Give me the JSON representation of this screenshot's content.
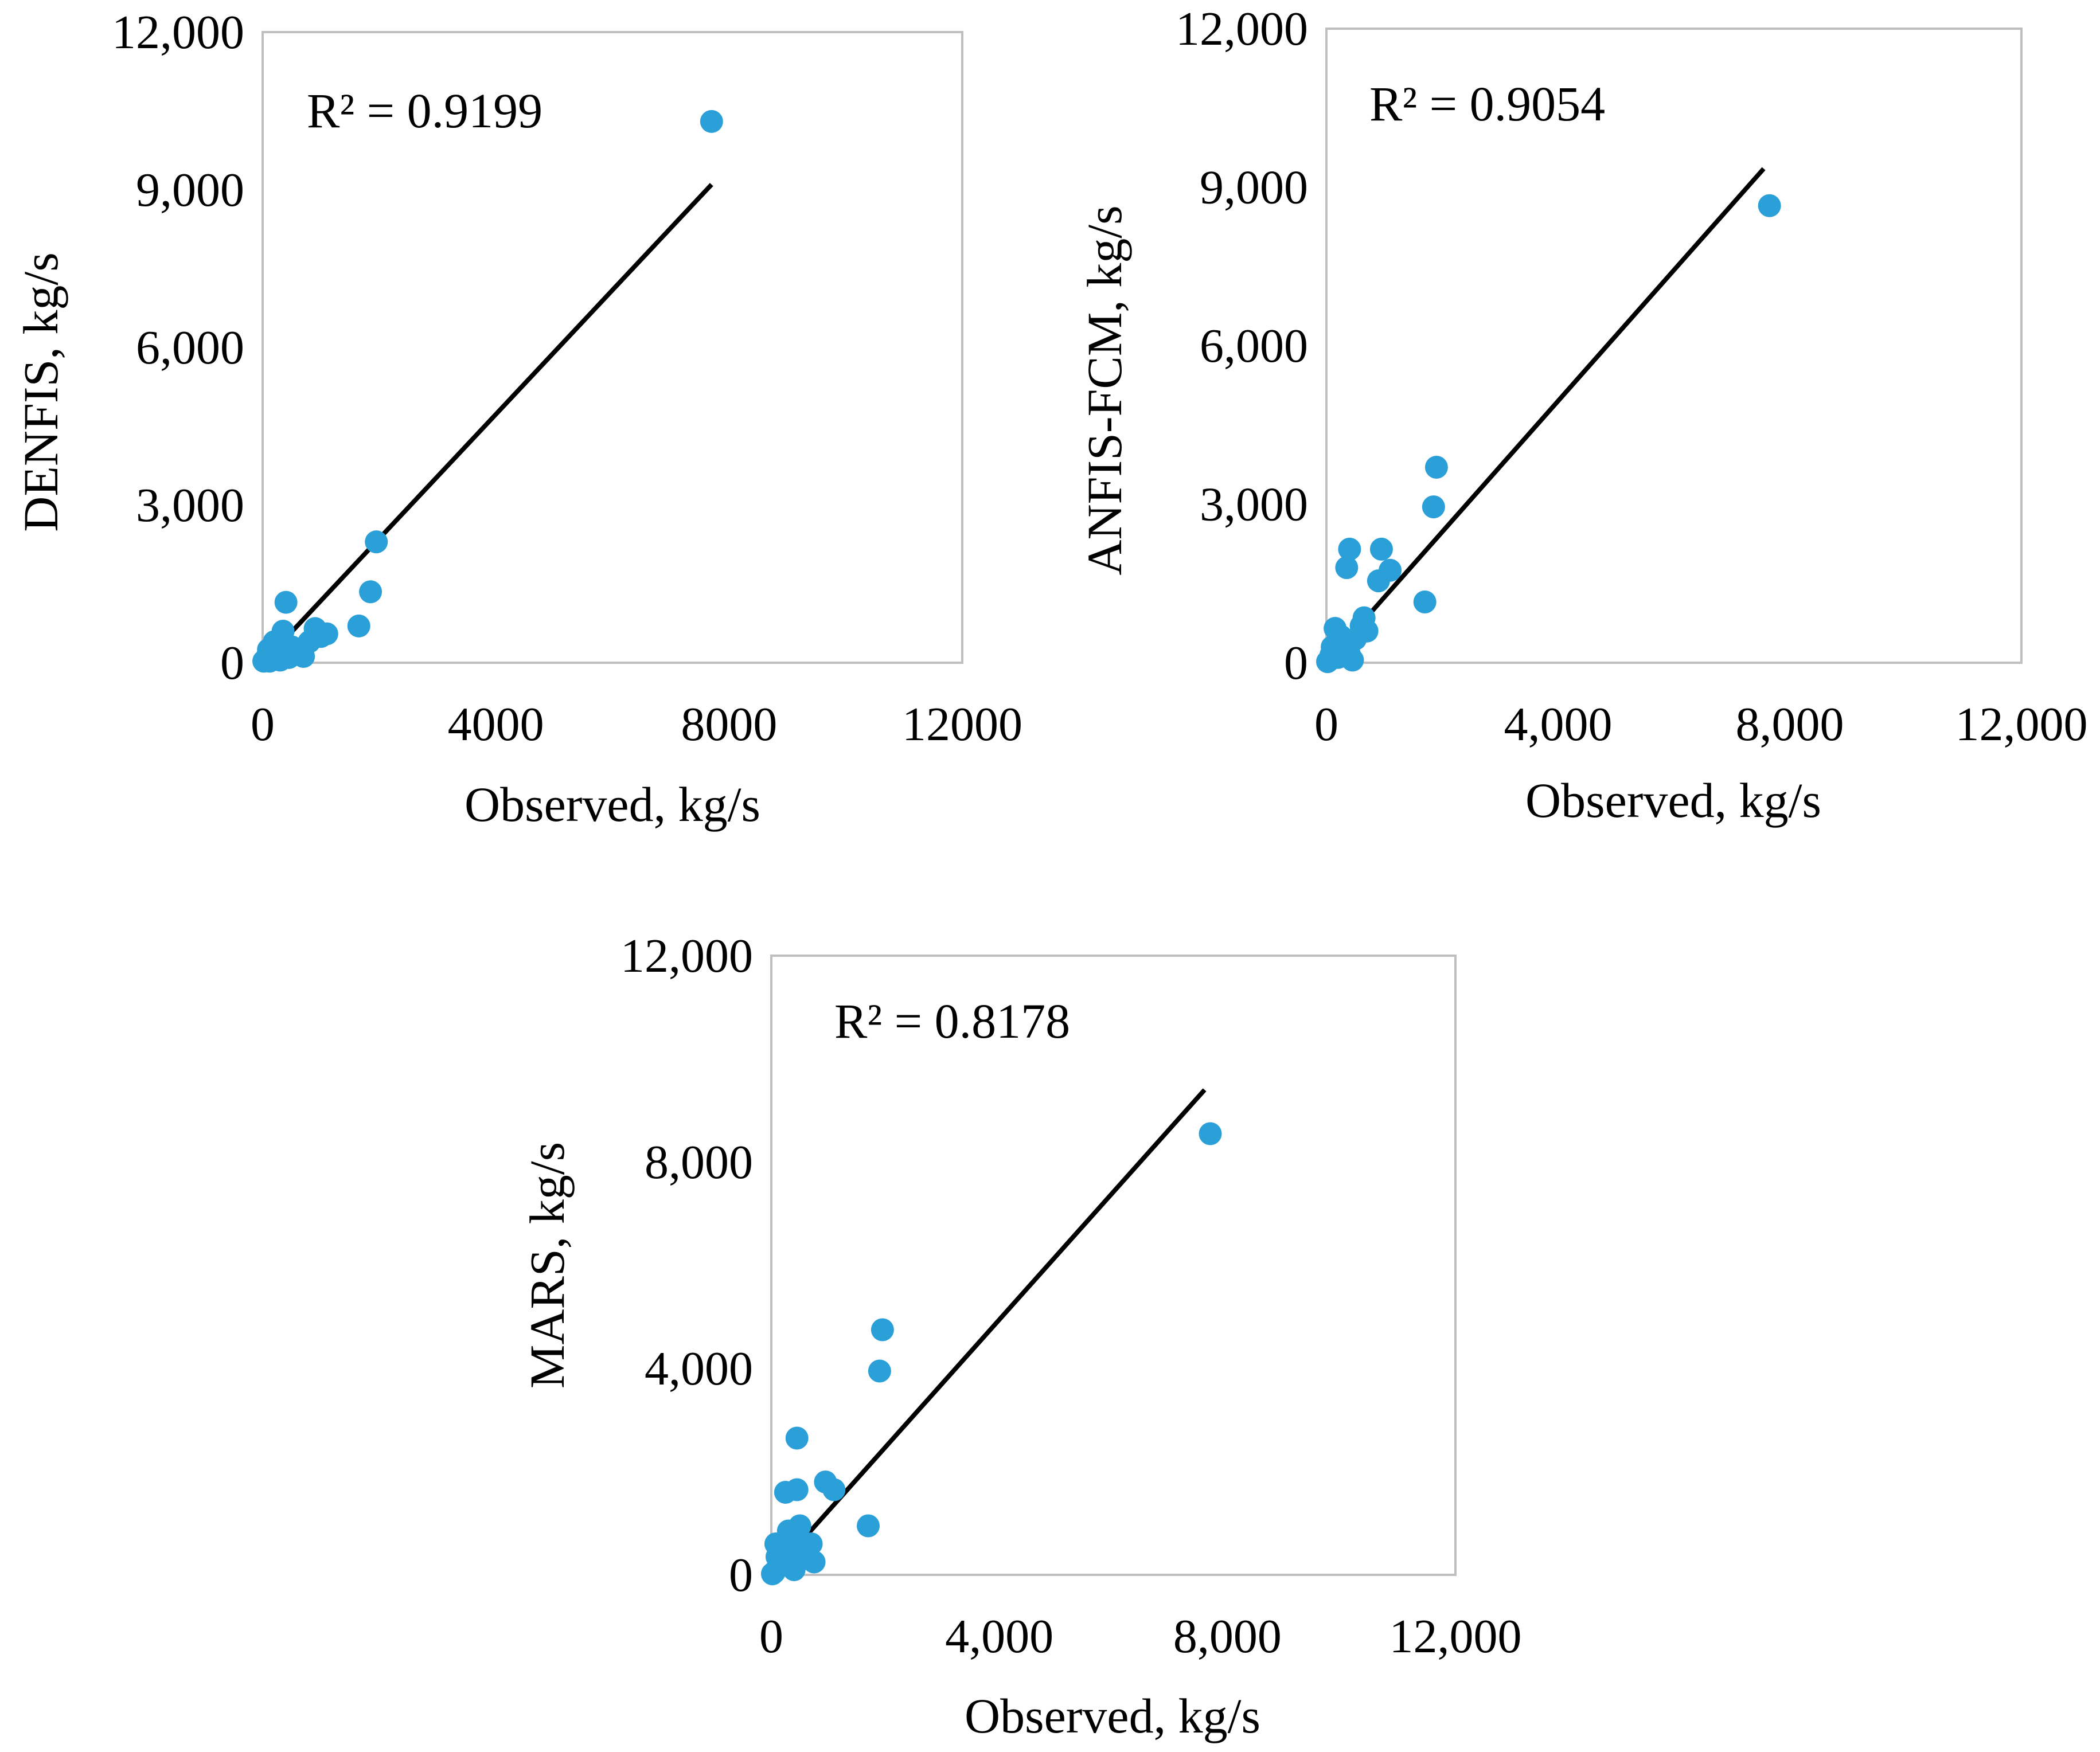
{
  "colors": {
    "marker": "#2a9fd8",
    "trendline": "#000000",
    "frame": "#bfbfbf"
  },
  "chart_data": [
    {
      "type": "scatter",
      "ylabel": "DENFIS, kg/s",
      "xlabel": "Observed, kg/s",
      "r2_text": "R² = 0.9199",
      "xlim": [
        0,
        12000
      ],
      "ylim": [
        0,
        12000
      ],
      "x_ticks": [
        0,
        4000,
        8000,
        12000
      ],
      "x_tick_labels": [
        "0",
        "4000",
        "8000",
        "12000"
      ],
      "y_ticks": [
        0,
        3000,
        6000,
        9000,
        12000
      ],
      "y_tick_labels": [
        "0",
        "3,000",
        "6,000",
        "9,000",
        "12,000"
      ],
      "trendline": {
        "x": [
          0,
          7700
        ],
        "y": [
          0,
          9100
        ]
      },
      "points": [
        {
          "x": 7700,
          "y": 10300
        },
        {
          "x": 1950,
          "y": 2300
        },
        {
          "x": 1850,
          "y": 1350
        },
        {
          "x": 1650,
          "y": 700
        },
        {
          "x": 400,
          "y": 1150
        },
        {
          "x": 350,
          "y": 600
        },
        {
          "x": 900,
          "y": 650
        },
        {
          "x": 1100,
          "y": 550
        },
        {
          "x": 800,
          "y": 400
        },
        {
          "x": 700,
          "y": 120
        },
        {
          "x": 500,
          "y": 300
        },
        {
          "x": 250,
          "y": 200
        },
        {
          "x": 150,
          "y": 100
        },
        {
          "x": 100,
          "y": 250
        },
        {
          "x": 50,
          "y": 50
        },
        {
          "x": 20,
          "y": 30
        },
        {
          "x": 300,
          "y": 50
        },
        {
          "x": 600,
          "y": 200
        },
        {
          "x": 200,
          "y": 400
        },
        {
          "x": 80,
          "y": 120
        },
        {
          "x": 450,
          "y": 100
        },
        {
          "x": 1000,
          "y": 500
        },
        {
          "x": 120,
          "y": 30
        }
      ]
    },
    {
      "type": "scatter",
      "ylabel": "ANFIS-FCM, kg/s",
      "xlabel": "Observed, kg/s",
      "r2_text": "R² = 0.9054",
      "xlim": [
        0,
        12000
      ],
      "ylim": [
        0,
        12000
      ],
      "x_ticks": [
        0,
        4000,
        8000,
        12000
      ],
      "x_tick_labels": [
        "0",
        "4,000",
        "8,000",
        "12,000"
      ],
      "y_ticks": [
        0,
        3000,
        6000,
        9000,
        12000
      ],
      "y_tick_labels": [
        "0",
        "3,000",
        "6,000",
        "9,000",
        "12,000"
      ],
      "trendline": {
        "x": [
          0,
          7550
        ],
        "y": [
          0,
          9350
        ]
      },
      "points": [
        {
          "x": 7650,
          "y": 8650
        },
        {
          "x": 1900,
          "y": 3700
        },
        {
          "x": 1850,
          "y": 2950
        },
        {
          "x": 1700,
          "y": 1150
        },
        {
          "x": 950,
          "y": 2150
        },
        {
          "x": 400,
          "y": 2150
        },
        {
          "x": 350,
          "y": 1800
        },
        {
          "x": 1100,
          "y": 1750
        },
        {
          "x": 900,
          "y": 1550
        },
        {
          "x": 650,
          "y": 850
        },
        {
          "x": 700,
          "y": 600
        },
        {
          "x": 600,
          "y": 700
        },
        {
          "x": 150,
          "y": 650
        },
        {
          "x": 500,
          "y": 450
        },
        {
          "x": 300,
          "y": 250
        },
        {
          "x": 200,
          "y": 100
        },
        {
          "x": 100,
          "y": 300
        },
        {
          "x": 50,
          "y": 50
        },
        {
          "x": 400,
          "y": 150
        },
        {
          "x": 250,
          "y": 500
        },
        {
          "x": 80,
          "y": 150
        },
        {
          "x": 450,
          "y": 50
        },
        {
          "x": 20,
          "y": 20
        }
      ]
    },
    {
      "type": "scatter",
      "ylabel": "MARS, kg/s",
      "xlabel": "Observed, kg/s",
      "r2_text": "R² = 0.8178",
      "xlim": [
        0,
        12000
      ],
      "ylim": [
        0,
        12000
      ],
      "x_ticks": [
        0,
        4000,
        8000,
        12000
      ],
      "x_tick_labels": [
        "0",
        "4,000",
        "8,000",
        "12,000"
      ],
      "y_ticks": [
        0,
        4000,
        8000,
        12000
      ],
      "y_tick_labels": [
        "0",
        "4,000",
        "8,000",
        "12,000"
      ],
      "trendline": {
        "x": [
          0,
          7600
        ],
        "y": [
          0,
          9400
        ]
      },
      "points": [
        {
          "x": 7700,
          "y": 8550
        },
        {
          "x": 1950,
          "y": 4750
        },
        {
          "x": 1900,
          "y": 3950
        },
        {
          "x": 1700,
          "y": 950
        },
        {
          "x": 450,
          "y": 2650
        },
        {
          "x": 450,
          "y": 1650
        },
        {
          "x": 250,
          "y": 1600
        },
        {
          "x": 950,
          "y": 1800
        },
        {
          "x": 1100,
          "y": 1650
        },
        {
          "x": 500,
          "y": 950
        },
        {
          "x": 400,
          "y": 800
        },
        {
          "x": 300,
          "y": 850
        },
        {
          "x": 700,
          "y": 600
        },
        {
          "x": 600,
          "y": 450
        },
        {
          "x": 750,
          "y": 250
        },
        {
          "x": 350,
          "y": 500
        },
        {
          "x": 200,
          "y": 400
        },
        {
          "x": 150,
          "y": 200
        },
        {
          "x": 100,
          "y": 350
        },
        {
          "x": 50,
          "y": 50
        },
        {
          "x": 400,
          "y": 100
        },
        {
          "x": 250,
          "y": 250
        },
        {
          "x": 80,
          "y": 600
        },
        {
          "x": 20,
          "y": 20
        },
        {
          "x": 500,
          "y": 300
        }
      ]
    }
  ]
}
